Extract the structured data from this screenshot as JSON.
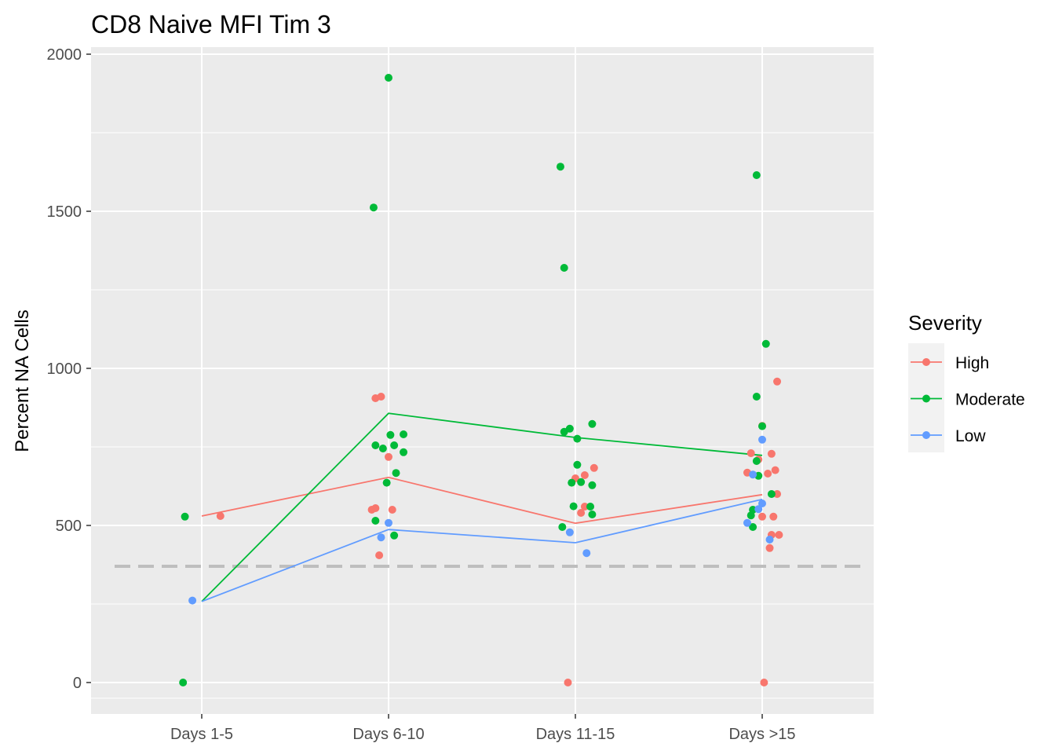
{
  "chart_data": {
    "type": "scatter",
    "title": "CD8 Naive MFI Tim 3",
    "xlabel": "",
    "ylabel": "Percent NA Cells",
    "categories": [
      "Days 1-5",
      "Days 6-10",
      "Days 11-15",
      "Days >15"
    ],
    "ylim": [
      -100,
      2010
    ],
    "yticks": [
      0,
      500,
      1000,
      1500,
      2000
    ],
    "grid": true,
    "background": "#ebebeb",
    "reference_line": {
      "y": 370,
      "style": "dashed",
      "color": "#bebebe"
    },
    "legend": {
      "title": "Severity",
      "position": "right"
    },
    "series": [
      {
        "name": "High",
        "color": "#f8766d",
        "means": [
          530,
          653,
          507,
          598
        ],
        "points": [
          [
            0.1,
            530
          ],
          [
            -0.09,
            550
          ],
          [
            -0.07,
            555
          ],
          [
            0.02,
            550
          ],
          [
            -0.05,
            405
          ],
          [
            0.0,
            718
          ],
          [
            -0.07,
            905
          ],
          [
            -0.04,
            910
          ],
          [
            -0.04,
            0
          ],
          [
            0.0,
            650
          ],
          [
            0.05,
            660
          ],
          [
            0.1,
            683
          ],
          [
            0.05,
            560
          ],
          [
            0.03,
            540
          ],
          [
            0.0,
            817
          ],
          [
            -0.06,
            730
          ],
          [
            -0.02,
            710
          ],
          [
            0.03,
            665
          ],
          [
            -0.08,
            668
          ],
          [
            0.05,
            728
          ],
          [
            0.07,
            676
          ],
          [
            0.08,
            600
          ],
          [
            0.0,
            528
          ],
          [
            0.06,
            528
          ],
          [
            0.05,
            470
          ],
          [
            0.09,
            470
          ],
          [
            0.04,
            428
          ],
          [
            0.08,
            958
          ],
          [
            0.01,
            0
          ]
        ]
      },
      {
        "name": "Moderate",
        "color": "#00ba38",
        "means": [
          258,
          857,
          780,
          723
        ],
        "points": [
          [
            -0.09,
            528
          ],
          [
            -0.1,
            0
          ],
          [
            -0.08,
            1512
          ],
          [
            0.0,
            1925
          ],
          [
            -0.07,
            755
          ],
          [
            -0.03,
            745
          ],
          [
            0.01,
            788
          ],
          [
            0.03,
            755
          ],
          [
            0.08,
            790
          ],
          [
            0.08,
            733
          ],
          [
            -0.01,
            636
          ],
          [
            0.04,
            667
          ],
          [
            -0.07,
            515
          ],
          [
            0.03,
            468
          ],
          [
            -0.08,
            1642
          ],
          [
            -0.06,
            1320
          ],
          [
            -0.06,
            798
          ],
          [
            -0.03,
            808
          ],
          [
            0.01,
            776
          ],
          [
            0.09,
            823
          ],
          [
            0.01,
            693
          ],
          [
            -0.02,
            636
          ],
          [
            0.03,
            638
          ],
          [
            0.09,
            628
          ],
          [
            -0.01,
            561
          ],
          [
            0.08,
            560
          ],
          [
            0.09,
            535
          ],
          [
            -0.07,
            495
          ],
          [
            -0.03,
            1615
          ],
          [
            0.02,
            1078
          ],
          [
            -0.03,
            910
          ],
          [
            0.0,
            816
          ],
          [
            -0.03,
            705
          ],
          [
            -0.02,
            658
          ],
          [
            0.05,
            600
          ],
          [
            -0.05,
            550
          ],
          [
            -0.06,
            532
          ],
          [
            -0.05,
            495
          ]
        ]
      },
      {
        "name": "Low",
        "color": "#619cff",
        "means": [
          258,
          487,
          445,
          583
        ],
        "points": [
          [
            -0.05,
            261
          ],
          [
            0.0,
            508
          ],
          [
            -0.04,
            462
          ],
          [
            -0.03,
            478
          ],
          [
            0.06,
            412
          ],
          [
            0.0,
            773
          ],
          [
            -0.05,
            662
          ],
          [
            0.0,
            570
          ],
          [
            -0.02,
            552
          ],
          [
            -0.08,
            508
          ],
          [
            0.04,
            455
          ]
        ]
      }
    ]
  }
}
